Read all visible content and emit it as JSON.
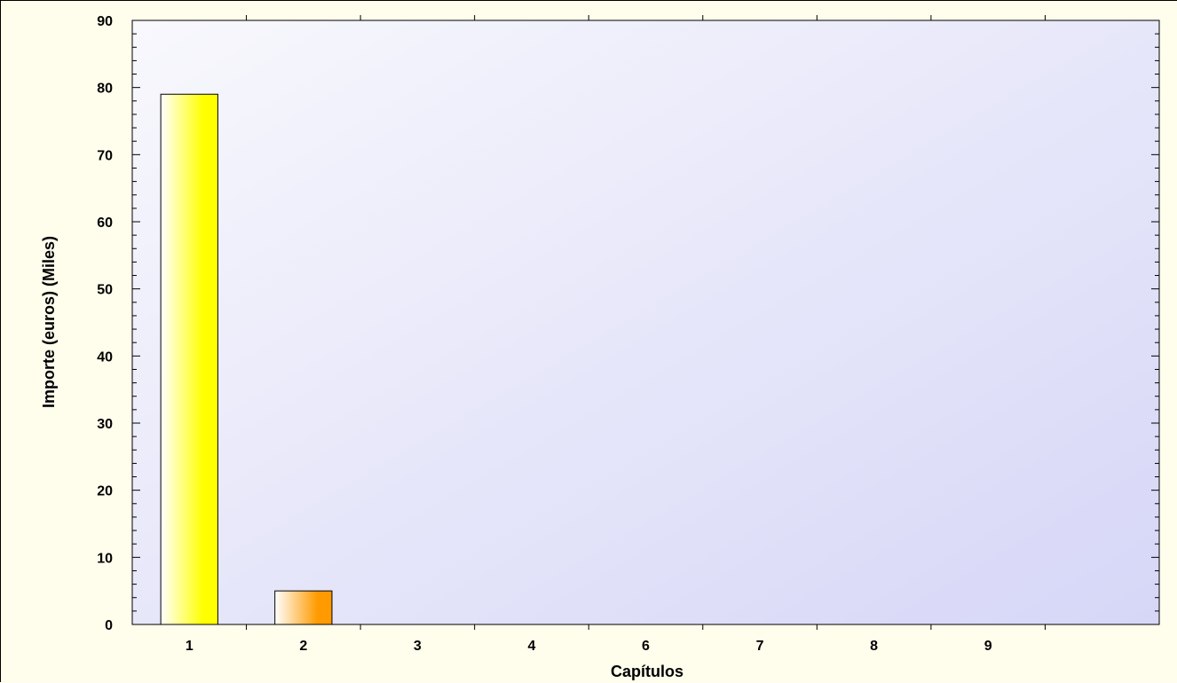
{
  "chart_data": {
    "type": "bar",
    "categories": [
      "1",
      "2",
      "3",
      "4",
      "6",
      "7",
      "8",
      "9"
    ],
    "values": [
      79,
      5,
      0,
      0,
      0,
      0,
      0,
      0
    ],
    "xlabel": "Capítulos",
    "ylabel": "Importe (euros) (Miles)",
    "ylim": [
      0,
      90
    ],
    "yticks": [
      0,
      10,
      20,
      30,
      40,
      50,
      60,
      70,
      80,
      90
    ],
    "grid": false,
    "legend": "none",
    "colors": {
      "plot_background_top": "#f6f6fd",
      "plot_background_bottom": "#d8d8f8",
      "page_background": "#fffdec",
      "bar_fills": [
        "#ffff00",
        "#ff9a00",
        "#ffff00",
        "#ff9a00",
        "#ffff00",
        "#ff9a00",
        "#ffff00",
        "#ff9a00"
      ]
    }
  }
}
